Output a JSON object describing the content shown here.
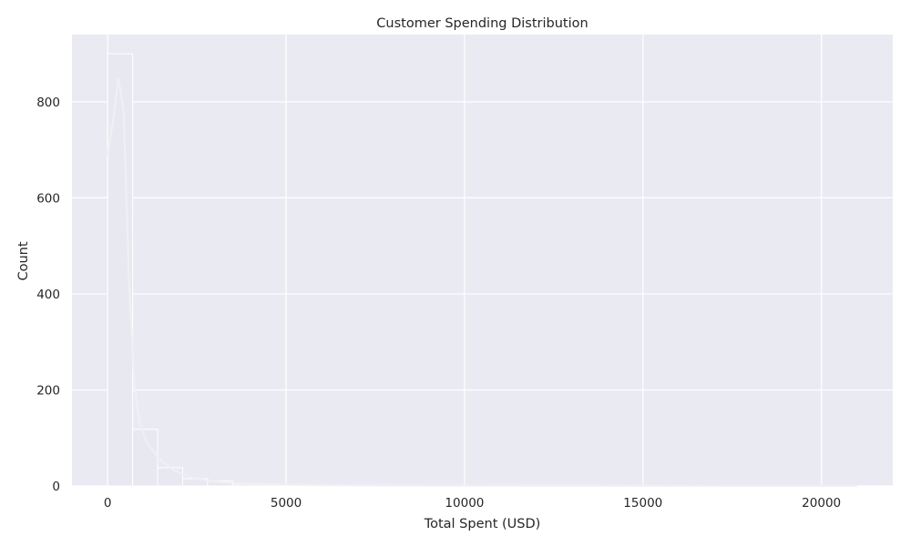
{
  "chart_data": {
    "type": "bar",
    "title": "Customer Spending Distribution",
    "xlabel": "Total Spent (USD)",
    "ylabel": "Count",
    "xlim": [
      -1000,
      22000
    ],
    "ylim": [
      0,
      940
    ],
    "xticks": [
      0,
      5000,
      10000,
      15000,
      20000
    ],
    "yticks": [
      0,
      200,
      400,
      600,
      800
    ],
    "grid": true,
    "legend": "none",
    "bin_width": 700,
    "bins": [
      {
        "x0": 0,
        "x1": 700,
        "count": 900
      },
      {
        "x0": 700,
        "x1": 1400,
        "count": 118
      },
      {
        "x0": 1400,
        "x1": 2100,
        "count": 38
      },
      {
        "x0": 2100,
        "x1": 2800,
        "count": 15
      },
      {
        "x0": 2800,
        "x1": 3500,
        "count": 10
      },
      {
        "x0": 3500,
        "x1": 4200,
        "count": 4
      },
      {
        "x0": 4200,
        "x1": 4900,
        "count": 3
      },
      {
        "x0": 4900,
        "x1": 5600,
        "count": 2
      },
      {
        "x0": 5600,
        "x1": 6300,
        "count": 1
      },
      {
        "x0": 6300,
        "x1": 7000,
        "count": 1
      },
      {
        "x0": 7000,
        "x1": 7700,
        "count": 0
      },
      {
        "x0": 7700,
        "x1": 8400,
        "count": 1
      },
      {
        "x0": 8400,
        "x1": 9100,
        "count": 0
      },
      {
        "x0": 9100,
        "x1": 9800,
        "count": 0
      },
      {
        "x0": 9800,
        "x1": 10500,
        "count": 0
      },
      {
        "x0": 10500,
        "x1": 11200,
        "count": 0
      },
      {
        "x0": 11200,
        "x1": 11900,
        "count": 0
      },
      {
        "x0": 11900,
        "x1": 12600,
        "count": 0
      },
      {
        "x0": 12600,
        "x1": 13300,
        "count": 0
      },
      {
        "x0": 13300,
        "x1": 14000,
        "count": 0
      },
      {
        "x0": 14000,
        "x1": 14700,
        "count": 0
      },
      {
        "x0": 14700,
        "x1": 15400,
        "count": 0
      },
      {
        "x0": 15400,
        "x1": 16100,
        "count": 0
      },
      {
        "x0": 16100,
        "x1": 16800,
        "count": 0
      },
      {
        "x0": 16800,
        "x1": 17500,
        "count": 0
      },
      {
        "x0": 17500,
        "x1": 18200,
        "count": 0
      },
      {
        "x0": 18200,
        "x1": 18900,
        "count": 0
      },
      {
        "x0": 18900,
        "x1": 19600,
        "count": 0
      },
      {
        "x0": 19600,
        "x1": 20300,
        "count": 0
      },
      {
        "x0": 20300,
        "x1": 21000,
        "count": 1
      }
    ],
    "kde_line": [
      [
        0,
        690
      ],
      [
        150,
        760
      ],
      [
        300,
        850
      ],
      [
        450,
        780
      ],
      [
        600,
        420
      ],
      [
        750,
        210
      ],
      [
        900,
        130
      ],
      [
        1100,
        90
      ],
      [
        1400,
        60
      ],
      [
        1800,
        35
      ],
      [
        2300,
        18
      ],
      [
        3000,
        9
      ],
      [
        4000,
        4
      ],
      [
        5500,
        2
      ],
      [
        8000,
        1
      ],
      [
        21000,
        0
      ]
    ],
    "colors": {
      "bar_fill": "#e8e8f0",
      "bar_edge": "#ffffff",
      "kde_line": "#f0f0f4",
      "background": "#eaeaf2",
      "grid": "#ffffff",
      "text": "#262626"
    }
  }
}
